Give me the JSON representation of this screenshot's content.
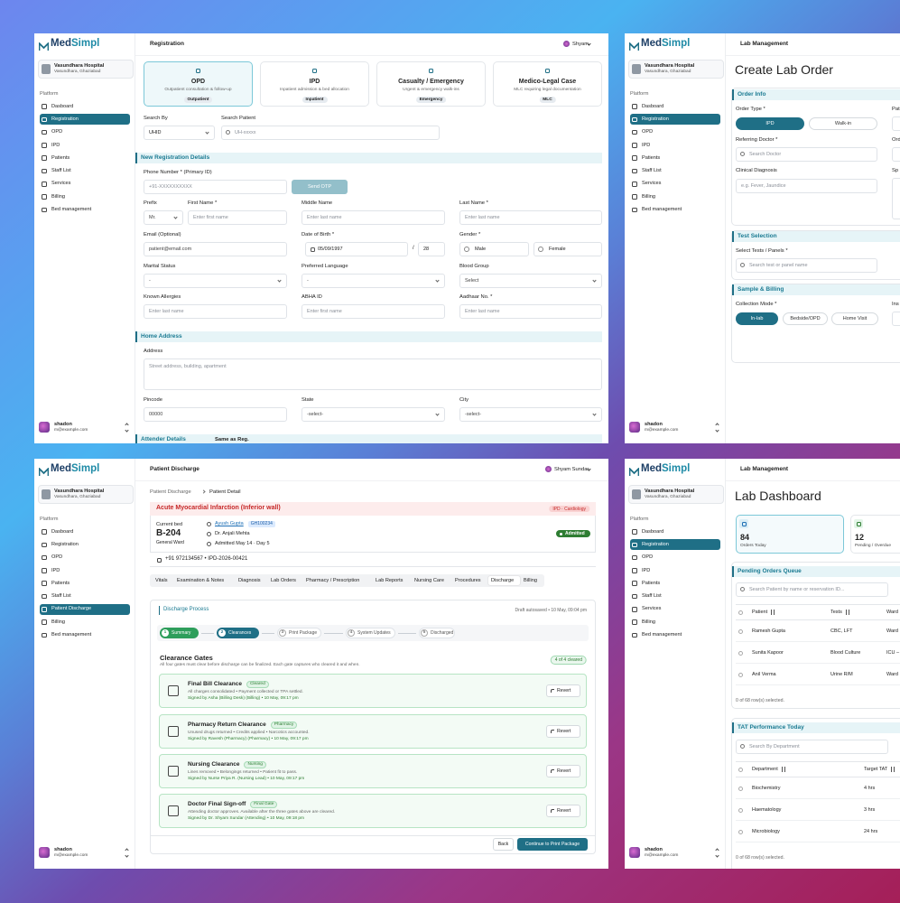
{
  "brand": {
    "prefix": "Med",
    "suffix": "Simpl"
  },
  "sidebar": {
    "hospital": "Vasundhara Hospital",
    "location": "Vasundhara, Ghaziabad",
    "section": "Platform",
    "nav": [
      "Dasboard",
      "Registration",
      "OPD",
      "IPD",
      "Patients",
      "Staff List",
      "Services",
      "Billing",
      "Bed management"
    ],
    "active": 1,
    "user": "shadon",
    "email": "m@example.com"
  },
  "registration": {
    "header": "Registration",
    "user": "Shyam",
    "visit_types": [
      {
        "title": "OPD",
        "subtitle": "Outpatient consultation & follow-up",
        "badge": "Outpatient"
      },
      {
        "title": "IPD",
        "subtitle": "Inpatient admission & bed allocation",
        "badge": "Inpatient"
      },
      {
        "title": "Casualty / Emergency",
        "subtitle": "Urgent & emergency walk-ins",
        "badge": "Emergency"
      },
      {
        "title": "Medico-Legal Case",
        "subtitle": "MLC requiring legal documentation",
        "badge": "MLC"
      }
    ],
    "active_visit": 0,
    "search_by": {
      "label": "Search By",
      "value": "UHID"
    },
    "search_patient": {
      "label": "Search Patient",
      "placeholder": "UH-xxxxx"
    },
    "sections": [
      "New Registration Details",
      "Home Address",
      "Attender Details"
    ],
    "same_as_reg": "Same as Reg.",
    "phone": {
      "label": "Phone Number * (Primary ID)",
      "placeholder": "+91-XXXXXXXXXX",
      "button": "Send OTP"
    },
    "rows": [
      [
        {
          "label": "Prefix",
          "value": "Mr."
        },
        {
          "label": "First Name *",
          "value": "Enter first name"
        },
        {
          "label": "Middle Name",
          "value": "Enter last name"
        },
        {
          "label": "Last Name *",
          "value": "Enter last name"
        }
      ],
      [
        {
          "label": "Email (Optional)",
          "value": "patient@email.com"
        },
        {
          "label": "Date of Birth *",
          "value": "05/09/1997",
          "separator": "/",
          "age": "28"
        },
        {
          "label": "Gender *",
          "options": [
            "Male",
            "Female"
          ]
        }
      ],
      [
        {
          "label": "Marital Status",
          "value": "-"
        },
        {
          "label": "Preferred Language",
          "value": "-"
        },
        {
          "label": "Blood Group",
          "value": "Select"
        }
      ],
      [
        {
          "label": "Known Allergies",
          "value": "Enter last name"
        },
        {
          "label": "ABHA ID",
          "value": "Enter first name"
        },
        {
          "label": "Aadhaar No. *",
          "value": "Enter last name"
        }
      ],
      [
        {
          "label": "Pincode",
          "value": "00000"
        },
        {
          "label": "State",
          "value": "-select-"
        },
        {
          "label": "City",
          "value": "-select-"
        }
      ]
    ],
    "address": {
      "label": "Address",
      "placeholder": "Street address, building, apartment"
    }
  },
  "lab_order": {
    "header": "Lab Management",
    "title": "Create Lab Order",
    "sections": [
      "Order Info",
      "Test Selection",
      "Sample & Billing"
    ],
    "order_type": {
      "label": "Order Type *",
      "options": [
        "IPD",
        "Walk-in"
      ]
    },
    "referring_doctor": {
      "label": "Referring Doctor *",
      "placeholder": "Search Doctor"
    },
    "diagnosis": {
      "label": "Clinical Diagnosis",
      "placeholder": "e.g. Fever, Jaundice"
    },
    "tests": {
      "label": "Select Tests / Panels *",
      "placeholder": "Search test or panel name"
    },
    "collection": {
      "label": "Collection Mode *",
      "options": [
        "In-lab",
        "Bedside/OPD",
        "Home Visit"
      ]
    },
    "cut_labels": [
      "Pat",
      "Ord",
      "Sp",
      "Ins"
    ]
  },
  "discharge": {
    "header": "Patient Discharge",
    "user": "Shyam Sundar",
    "nav": [
      "Dasboard",
      "Registration",
      "OPD",
      "IPD",
      "Patients",
      "Staff List",
      "Patient Discharge",
      "Billing",
      "Bed management"
    ],
    "active_nav": 6,
    "breadcrumb": [
      "Patient Discharge",
      "Patient Detail"
    ],
    "diagnosis": "Acute Myocardial Infarction (Inferior wall)",
    "department": "IPD · Cardiology",
    "bed": {
      "label": "Current bed",
      "number": "B-204",
      "ward": "General Ward"
    },
    "patient": {
      "name": "Ayush Gupta",
      "id": "GH100234",
      "doctor": "Dr. Anjali Mehta",
      "admitted": "Admitted May 14 · Day 5"
    },
    "status": "Admitted",
    "contact": "+91 972134567 • IPD-2026-00421",
    "tabs": [
      "Vitals",
      "Examination & Notes",
      "Diagnosis",
      "Lab Orders",
      "Pharmacy / Prescription",
      "Lab Reports",
      "Nursing Care",
      "Procedures",
      "Discharge",
      "Billing"
    ],
    "active_tab": 8,
    "process_title": "Discharge Process",
    "autosave": "Draft autosaved • 10 May, 09:04 pm",
    "steps": [
      {
        "num": 1,
        "label": "Summary"
      },
      {
        "num": 2,
        "label": "Clearances"
      },
      {
        "num": 3,
        "label": "Print Package"
      },
      {
        "num": 4,
        "label": "System Updates"
      },
      {
        "num": 5,
        "label": "Discharged"
      }
    ],
    "current_step": 1,
    "gates_title": "Clearance Gates",
    "gates_note": "All four gates must clear before discharge can be finalized. Each gate captures who cleared it and when.",
    "gates_count": "4 of 4 cleared",
    "gates": [
      {
        "title": "Final Bill Clearance",
        "badge": "Cleared",
        "detail": "All charges consolidated • Payment collected or TPA settled.",
        "signed": "Signed by Asha (Billing Desk) (Billing) • 10 May, 09:17 pm"
      },
      {
        "title": "Pharmacy Return Clearance",
        "badge": "Pharmacy",
        "detail": "Unused drugs returned • Credits applied • Narcotics accounted.",
        "signed": "Signed by Ravesh (Pharmacy) (Pharmacy) • 10 May, 09:17 pm"
      },
      {
        "title": "Nursing Clearance",
        "badge": "Nursing",
        "detail": "Lines removed • Belongings returned • Patient fit to pass.",
        "signed": "Signed by Nurse Priya R. (Nursing Lead) • 10 May, 09:17 pm"
      },
      {
        "title": "Doctor Final Sign-off",
        "badge": "Final Gate",
        "detail": "Attending doctor approves. Available after the three gates above are cleared.",
        "signed": "Signed by Dr. Shyam Sundar (Attending) • 10 May, 09:18 pm"
      }
    ],
    "revert": "Revert",
    "back": "Back",
    "continue": "Continue to Print Package"
  },
  "lab_dashboard": {
    "header": "Lab Management",
    "title": "Lab Dashboard",
    "stats": [
      {
        "value": 84,
        "label": "Orders Today"
      },
      {
        "value": 12,
        "label": "Pending / Overdue"
      }
    ],
    "queue": {
      "title": "Pending Orders Queue",
      "search": "Search Patient by name or reservation ID...",
      "columns": [
        "Patient",
        "Tests",
        "Ward"
      ],
      "rows": [
        [
          "Ramesh Gupta",
          "CBC, LFT",
          "Ward"
        ],
        [
          "Sunita Kapoor",
          "Blood Culture",
          "ICU –"
        ],
        [
          "Anil Verma",
          "Urine R/M",
          "Ward"
        ]
      ],
      "footer": "0 of 68 row(s) selected."
    },
    "tat": {
      "title": "TAT Performance Today",
      "search": "Search By Department",
      "columns": [
        "Department",
        "Target TAT"
      ],
      "rows": [
        [
          "Biochemistry",
          "4 hrs"
        ],
        [
          "Haematology",
          "3 hrs"
        ],
        [
          "Microbiology",
          "24 hrs"
        ]
      ],
      "footer": "0 of 68 row(s) selected."
    }
  }
}
